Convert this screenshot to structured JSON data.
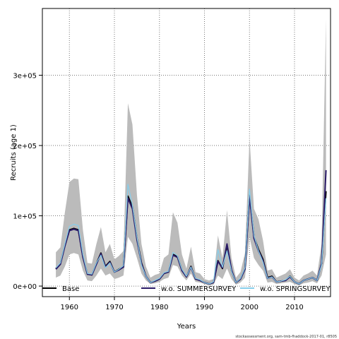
{
  "chart_data": {
    "type": "line",
    "xlabel": "Years",
    "ylabel": "Recruits (age 1)",
    "xlim": [
      1954,
      2018
    ],
    "ylim": [
      -15000,
      395000
    ],
    "x_ticks": [
      1960,
      1970,
      1980,
      1990,
      2000,
      2010
    ],
    "y_ticks": [
      0,
      100000,
      200000,
      300000
    ],
    "y_tick_labels": [
      "0e+00",
      "1e+05",
      "2e+05",
      "3e+05"
    ],
    "grid": "dotted",
    "legend_position": "bottom",
    "legend": [
      {
        "label": "Base",
        "color": "#000000"
      },
      {
        "label": "w.o. SUMMERSURVEY",
        "color": "#2a1a66"
      },
      {
        "label": "w.o. SPRINGSURVEY",
        "color": "#87ceeb"
      }
    ],
    "footnote": "stockassessment.org, sam-tmb-fhaddock-2017-01, r8505",
    "band_color": "#bbbbbb",
    "x": [
      1957,
      1958,
      1959,
      1960,
      1961,
      1962,
      1963,
      1964,
      1965,
      1966,
      1967,
      1968,
      1969,
      1970,
      1971,
      1972,
      1973,
      1974,
      1975,
      1976,
      1977,
      1978,
      1979,
      1980,
      1981,
      1982,
      1983,
      1984,
      1985,
      1986,
      1987,
      1988,
      1989,
      1990,
      1991,
      1992,
      1993,
      1994,
      1995,
      1996,
      1997,
      1998,
      1999,
      2000,
      2001,
      2002,
      2003,
      2004,
      2005,
      2006,
      2007,
      2008,
      2009,
      2010,
      2011,
      2012,
      2013,
      2014,
      2015,
      2016,
      2017
    ],
    "band_upper": [
      48000,
      55000,
      105000,
      148000,
      153000,
      152000,
      80000,
      33000,
      32000,
      60000,
      84000,
      48000,
      60000,
      38000,
      43000,
      50000,
      260000,
      230000,
      130000,
      60000,
      28000,
      12000,
      16000,
      18000,
      40000,
      45000,
      105000,
      90000,
      45000,
      25000,
      56000,
      20000,
      18000,
      10000,
      8000,
      10000,
      72000,
      40000,
      108000,
      40000,
      12000,
      20000,
      47000,
      210000,
      110000,
      95000,
      65000,
      22000,
      24000,
      12000,
      15000,
      18000,
      24000,
      12000,
      8000,
      15000,
      18000,
      22000,
      15000,
      60000,
      380000
    ],
    "band_lower": [
      12000,
      15000,
      28000,
      45000,
      47000,
      45000,
      22000,
      8000,
      7000,
      15000,
      25000,
      15000,
      18000,
      10000,
      12000,
      15000,
      70000,
      60000,
      40000,
      18000,
      8000,
      3000,
      4000,
      6000,
      10000,
      12000,
      30000,
      28000,
      15000,
      8000,
      18000,
      6000,
      5000,
      3000,
      1000,
      2000,
      15000,
      10000,
      25000,
      10000,
      2000,
      5000,
      12000,
      70000,
      40000,
      30000,
      22000,
      5000,
      6000,
      3000,
      4000,
      5000,
      6000,
      3000,
      1000,
      4000,
      5000,
      7000,
      4000,
      15000,
      45000
    ],
    "series": [
      {
        "name": "Base",
        "values": [
          25000,
          32000,
          58000,
          80000,
          82000,
          80000,
          42000,
          17000,
          16000,
          32000,
          47000,
          28000,
          35000,
          20000,
          24000,
          28000,
          128000,
          113000,
          68000,
          33000,
          14000,
          5000,
          7000,
          10000,
          18000,
          20000,
          45000,
          42000,
          23000,
          13000,
          28000,
          10000,
          8000,
          5000,
          3000,
          5000,
          36000,
          25000,
          58000,
          22000,
          5000,
          10000,
          25000,
          130000,
          70000,
          52000,
          38000,
          12000,
          14000,
          6000,
          7000,
          8000,
          14000,
          6000,
          3000,
          8000,
          10000,
          12000,
          8000,
          32000,
          135000
        ]
      },
      {
        "name": "w.o. SUMMERSURVEY",
        "values": [
          24000,
          31000,
          57000,
          79000,
          81000,
          79000,
          41000,
          17000,
          16000,
          31000,
          46000,
          27000,
          34000,
          20000,
          23000,
          27000,
          125000,
          110000,
          66000,
          32000,
          14000,
          5000,
          7000,
          10000,
          18000,
          20000,
          44000,
          41000,
          22000,
          13000,
          27000,
          10000,
          8000,
          5000,
          3000,
          5000,
          35000,
          26000,
          60000,
          23000,
          5000,
          10000,
          24000,
          128000,
          68000,
          50000,
          36000,
          11000,
          13000,
          6000,
          7000,
          8000,
          13000,
          6000,
          3000,
          8000,
          10000,
          12000,
          8000,
          32000,
          165000
        ]
      },
      {
        "name": "w.o. SPRINGSURVEY",
        "values": [
          26000,
          33000,
          60000,
          85000,
          88000,
          86000,
          45000,
          18000,
          17000,
          33000,
          44000,
          26000,
          33000,
          20000,
          24000,
          29000,
          145000,
          115000,
          70000,
          30000,
          14000,
          5000,
          8000,
          11000,
          19000,
          21000,
          48000,
          43000,
          24000,
          14000,
          27000,
          11000,
          9000,
          5000,
          3000,
          6000,
          52000,
          27000,
          50000,
          21000,
          5000,
          11000,
          26000,
          138000,
          72000,
          50000,
          34000,
          11000,
          13000,
          6000,
          7000,
          9000,
          14000,
          6000,
          3000,
          8000,
          10000,
          12000,
          8000,
          30000,
          125000
        ]
      }
    ]
  }
}
